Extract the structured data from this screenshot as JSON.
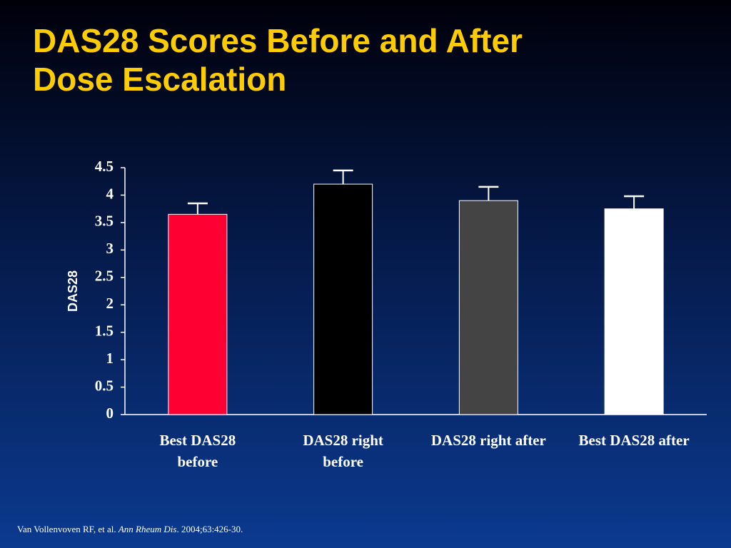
{
  "chart_data": {
    "type": "bar",
    "title": "DAS28 Scores Before and After Dose Escalation",
    "ylabel": "DAS28",
    "categories": [
      "Best DAS28 before",
      "DAS28 right before",
      "DAS28 right after",
      "Best DAS28 after"
    ],
    "values": [
      3.65,
      4.2,
      3.9,
      3.75
    ],
    "errors": [
      0.2,
      0.25,
      0.25,
      0.23
    ],
    "colors": [
      "#ff0033",
      "#000000",
      "#444444",
      "#ffffff"
    ],
    "ylim": [
      0,
      4.5
    ],
    "yticks": [
      0,
      0.5,
      1,
      1.5,
      2,
      2.5,
      3,
      3.5,
      4,
      4.5
    ]
  },
  "citation": [
    "Van Vollenvoven RF, et al. ",
    "Ann Rheum Dis",
    ". 2004;63:426-30."
  ]
}
